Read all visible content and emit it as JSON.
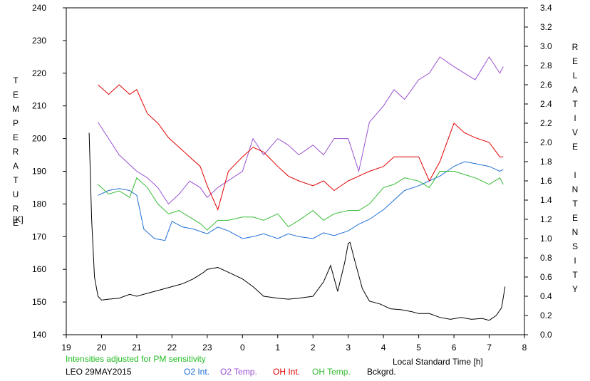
{
  "chart_data": {
    "type": "line",
    "left_axis_label": "TEMPERATURE",
    "left_axis_unit": "[K]",
    "right_axis_label": "RELATIVE INTENSITY",
    "xlabel": "Local Standard Time [h]",
    "note": "Intensities adjusted for PM sensitivity",
    "station_date": "LEO 29MAY2015",
    "x_ticks": [
      19,
      20,
      21,
      22,
      23,
      0,
      1,
      2,
      3,
      4,
      5,
      6,
      7,
      8
    ],
    "x_tick_labels": [
      "19",
      "20",
      "21",
      "22",
      "23",
      "0",
      "1",
      "2",
      "3",
      "4",
      "5",
      "6",
      "7",
      "8"
    ],
    "xlim": [
      19,
      32
    ],
    "y_left_ticks": [
      140,
      150,
      160,
      170,
      180,
      190,
      200,
      210,
      220,
      230,
      240
    ],
    "ylim_left": [
      140,
      240
    ],
    "y_right_ticks": [
      "0.0",
      "0.2",
      "0.4",
      "0.6",
      "0.8",
      "1.0",
      "1.2",
      "1.4",
      "1.6",
      "1.8",
      "2.0",
      "2.2",
      "2.4",
      "2.6",
      "2.8",
      "3.0",
      "3.2",
      "3.4"
    ],
    "ylim_right": [
      0,
      3.4
    ],
    "grid": false,
    "legend_position": "bottom",
    "colors": {
      "o2_int": "#1f6fd6",
      "o2_temp": "#9a4fd1",
      "oh_int": "#e00000",
      "oh_temp": "#33bb33",
      "bckgrd": "#000000",
      "note": "#22bb22"
    },
    "series": [
      {
        "name": "O2 Int.",
        "axis": "right",
        "color": "#1f6fd6",
        "x": [
          19.9,
          20.2,
          20.5,
          20.8,
          21.0,
          21.2,
          21.5,
          21.8,
          22.0,
          22.3,
          22.6,
          23.0,
          23.3,
          23.6,
          24.0,
          24.3,
          24.6,
          25.0,
          25.3,
          25.6,
          26.0,
          26.3,
          26.6,
          27.0,
          27.3,
          27.6,
          28.0,
          28.3,
          28.6,
          29.0,
          29.3,
          29.6,
          30.0,
          30.3,
          30.6,
          31.0,
          31.3,
          31.4
        ],
        "y": [
          1.45,
          1.5,
          1.52,
          1.5,
          1.45,
          1.1,
          1.0,
          0.98,
          1.18,
          1.12,
          1.1,
          1.05,
          1.12,
          1.08,
          1.0,
          1.02,
          1.05,
          1.0,
          1.05,
          1.02,
          1.0,
          1.06,
          1.03,
          1.08,
          1.15,
          1.2,
          1.3,
          1.4,
          1.5,
          1.55,
          1.6,
          1.65,
          1.75,
          1.8,
          1.78,
          1.75,
          1.7,
          1.72
        ]
      },
      {
        "name": "O2 Temp.",
        "axis": "left",
        "color": "#9a4fd1",
        "x": [
          19.9,
          20.2,
          20.5,
          20.8,
          21.0,
          21.3,
          21.6,
          21.9,
          22.2,
          22.5,
          22.8,
          23.0,
          23.3,
          24.0,
          24.3,
          24.6,
          25.0,
          25.3,
          25.6,
          26.0,
          26.3,
          26.6,
          27.0,
          27.3,
          27.6,
          28.0,
          28.3,
          28.6,
          29.0,
          29.3,
          29.6,
          30.0,
          30.3,
          30.6,
          31.0,
          31.3,
          31.4
        ],
        "y": [
          205,
          200,
          195,
          192,
          190,
          188,
          185,
          180,
          183,
          187,
          185,
          182,
          185,
          190,
          200,
          195,
          200,
          198,
          195,
          198,
          195,
          200,
          200,
          190,
          205,
          210,
          215,
          212,
          218,
          220,
          225,
          222,
          220,
          218,
          225,
          220,
          222
        ]
      },
      {
        "name": "OH Int.",
        "axis": "right",
        "color": "#e00000",
        "x": [
          19.9,
          20.2,
          20.5,
          20.8,
          21.0,
          21.3,
          21.6,
          21.9,
          22.2,
          22.5,
          22.8,
          23.0,
          23.3,
          23.6,
          24.0,
          24.3,
          24.6,
          25.0,
          25.3,
          25.6,
          26.0,
          26.3,
          26.6,
          27.0,
          27.3,
          27.6,
          28.0,
          28.3,
          28.6,
          29.0,
          29.3,
          29.6,
          30.0,
          30.3,
          30.6,
          31.0,
          31.3,
          31.4
        ],
        "y": [
          2.6,
          2.5,
          2.6,
          2.5,
          2.55,
          2.3,
          2.2,
          2.05,
          1.95,
          1.85,
          1.75,
          1.55,
          1.3,
          1.7,
          1.85,
          1.95,
          1.9,
          1.75,
          1.65,
          1.6,
          1.55,
          1.6,
          1.5,
          1.6,
          1.65,
          1.7,
          1.75,
          1.85,
          1.85,
          1.85,
          1.6,
          1.8,
          2.2,
          2.1,
          2.05,
          2.0,
          1.85,
          1.85
        ]
      },
      {
        "name": "OH Temp.",
        "axis": "left",
        "color": "#33bb33",
        "x": [
          19.9,
          20.2,
          20.5,
          20.8,
          21.0,
          21.3,
          21.6,
          21.9,
          22.2,
          22.5,
          22.8,
          23.0,
          23.3,
          23.6,
          24.0,
          24.3,
          24.6,
          25.0,
          25.3,
          25.6,
          26.0,
          26.3,
          26.6,
          27.0,
          27.3,
          27.6,
          28.0,
          28.3,
          28.6,
          29.0,
          29.3,
          29.6,
          30.0,
          30.3,
          30.6,
          31.0,
          31.3,
          31.4
        ],
        "y": [
          186,
          183,
          184,
          182,
          188,
          185,
          180,
          177,
          178,
          176,
          174,
          172,
          175,
          175,
          176,
          176,
          175,
          177,
          173,
          175,
          178,
          175,
          177,
          178,
          178,
          180,
          185,
          186,
          188,
          187,
          185,
          190,
          190,
          189,
          188,
          186,
          188,
          186
        ]
      },
      {
        "name": "Bckgrd.",
        "axis": "right",
        "color": "#000000",
        "x": [
          19.65,
          19.72,
          19.8,
          19.9,
          20.0,
          20.2,
          20.5,
          20.8,
          21.0,
          21.3,
          21.6,
          22.0,
          22.3,
          22.6,
          22.9,
          23.0,
          23.3,
          23.6,
          24.0,
          24.3,
          24.6,
          25.0,
          25.3,
          25.6,
          26.0,
          26.3,
          26.5,
          26.7,
          26.8,
          26.9,
          27.0,
          27.05,
          27.2,
          27.4,
          27.6,
          27.9,
          28.2,
          28.5,
          28.8,
          29.0,
          29.3,
          29.6,
          29.9,
          30.2,
          30.5,
          30.8,
          31.0,
          31.2,
          31.35,
          31.45
        ],
        "y": [
          2.1,
          1.2,
          0.6,
          0.4,
          0.36,
          0.37,
          0.38,
          0.42,
          0.4,
          0.43,
          0.46,
          0.5,
          0.53,
          0.58,
          0.65,
          0.68,
          0.7,
          0.65,
          0.58,
          0.5,
          0.4,
          0.38,
          0.37,
          0.38,
          0.4,
          0.55,
          0.72,
          0.45,
          0.6,
          0.75,
          0.95,
          0.96,
          0.75,
          0.48,
          0.35,
          0.32,
          0.27,
          0.26,
          0.24,
          0.22,
          0.22,
          0.18,
          0.16,
          0.18,
          0.16,
          0.17,
          0.15,
          0.2,
          0.28,
          0.5
        ]
      }
    ]
  }
}
